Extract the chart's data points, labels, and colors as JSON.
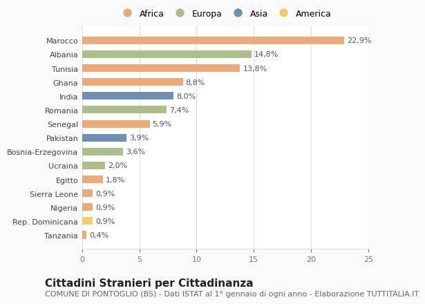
{
  "countries": [
    "Marocco",
    "Albania",
    "Tunisia",
    "Ghana",
    "India",
    "Romania",
    "Senegal",
    "Pakistan",
    "Bosnia-Erzegovina",
    "Ucraina",
    "Egitto",
    "Sierra Leone",
    "Nigeria",
    "Rep. Dominicana",
    "Tanzania"
  ],
  "values": [
    22.9,
    14.8,
    13.8,
    8.8,
    8.0,
    7.4,
    5.9,
    3.9,
    3.6,
    2.0,
    1.8,
    0.9,
    0.9,
    0.9,
    0.4
  ],
  "labels": [
    "22,9%",
    "14,8%",
    "13,8%",
    "8,8%",
    "8,0%",
    "7,4%",
    "5,9%",
    "3,9%",
    "3,6%",
    "2,0%",
    "1,8%",
    "0,9%",
    "0,9%",
    "0,9%",
    "0,4%"
  ],
  "continents": [
    "Africa",
    "Europa",
    "Africa",
    "Africa",
    "Asia",
    "Europa",
    "Africa",
    "Asia",
    "Europa",
    "Europa",
    "Africa",
    "Africa",
    "Africa",
    "America",
    "Africa"
  ],
  "colors": {
    "Africa": "#EDAA78",
    "Europa": "#ABBE8C",
    "Asia": "#6E8FB5",
    "America": "#F2CB6A"
  },
  "legend_order": [
    "Africa",
    "Europa",
    "Asia",
    "America"
  ],
  "xlim": [
    0,
    25
  ],
  "xticks": [
    0,
    5,
    10,
    15,
    20,
    25
  ],
  "title": "Cittadini Stranieri per Cittadinanza",
  "subtitle": "COMUNE DI PONTOGLIO (BS) - Dati ISTAT al 1° gennaio di ogni anno - Elaborazione TUTTITALIA.IT",
  "plot_bg": "#ffffff",
  "fig_bg": "#f9f9f9",
  "grid_color": "#dddddd",
  "title_fontsize": 11,
  "subtitle_fontsize": 8,
  "label_fontsize": 8,
  "tick_fontsize": 8,
  "legend_fontsize": 9
}
